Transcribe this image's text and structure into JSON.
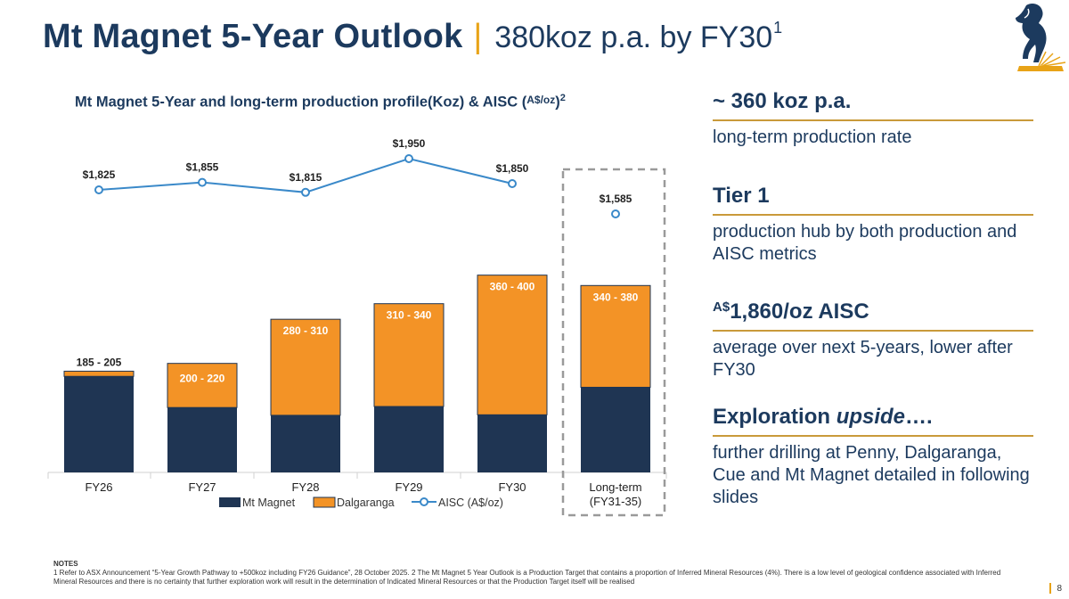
{
  "header": {
    "title": "Mt Magnet 5-Year Outlook",
    "separator": "|",
    "subtitle": "380koz p.a. by FY30",
    "subtitle_sup": "1"
  },
  "chart_title": {
    "text": "Mt Magnet 5-Year and long-term production profile(Koz) & AISC (",
    "unit": "A$/oz",
    "close": ")",
    "sup": "2"
  },
  "chart_data": {
    "type": "bar",
    "stacked": true,
    "categories": [
      "FY26",
      "FY27",
      "FY28",
      "FY29",
      "FY30",
      "Long-term\n(FY31-35)"
    ],
    "series": [
      {
        "name": "Mt Magnet",
        "color": "#1f3553",
        "values": [
          185,
          125,
          110,
          127,
          111,
          164
        ]
      },
      {
        "name": "Dalgaranga",
        "color": "#f39326",
        "values": [
          10,
          85,
          185,
          198,
          269,
          196
        ]
      }
    ],
    "range_labels": [
      "185 - 205",
      "200  - 220",
      "280 - 310",
      "310 - 340",
      "360 - 400",
      "340 - 380"
    ],
    "aisc": {
      "name": "AISC (A$/oz)",
      "color": "#3a89c9",
      "values": [
        1825,
        1855,
        1815,
        1950,
        1850,
        1585
      ],
      "labels": [
        "$1,825",
        "$1,855",
        "$1,815",
        "$1,950",
        "$1,850",
        "$1,585"
      ]
    },
    "highlight_category": "Long-term\n(FY31-35)",
    "ylim": [
      0,
      400
    ],
    "grid": false,
    "legend_position": "bottom"
  },
  "sidebar": [
    {
      "head": "~ 360 koz p.a.",
      "desc": "long-term production rate"
    },
    {
      "head": "Tier 1",
      "desc": "production hub by both production and AISC metrics"
    },
    {
      "head_sup": "A$",
      "head": "1,860/oz AISC",
      "desc": "average over next 5-years, lower after FY30"
    },
    {
      "head": "Exploration ",
      "head_em": "upside",
      "head_tail": "….",
      "desc": "further drilling at Penny, Dalgaranga, Cue and Mt Magnet detailed in following slides"
    }
  ],
  "notes": {
    "title": "NOTES",
    "text": "1 Refer to ASX Announcement “5-Year Growth Pathway to +500koz including FY26 Guidance”, 28 October 2025.  2 The Mt Magnet 5 Year Outlook is a Production Target that contains a proportion of Inferred Mineral Resources (4%).  There is a low level of geological confidence associated with Inferred Mineral Resources and there is no certainty that further exploration work will result in the determination of Indicated Mineral Resources or that the Production Target itself will be realised"
  },
  "page_number": "8",
  "colors": {
    "navy": "#1c3a5e",
    "gold": "#e8a317",
    "orange": "#f39326",
    "blue": "#3a89c9"
  }
}
